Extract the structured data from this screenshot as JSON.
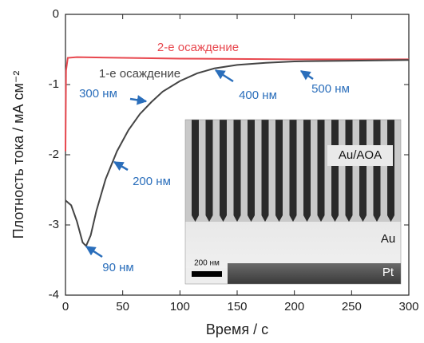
{
  "chart_data": {
    "type": "line",
    "xlabel": "Время / с",
    "ylabel": "Плотность тока / мА см⁻²",
    "xlim": [
      0,
      300
    ],
    "xticks": [
      0,
      50,
      100,
      150,
      200,
      250,
      300
    ],
    "ylim": [
      -4,
      0
    ],
    "yticks": [
      -4,
      -3,
      -2,
      -1,
      0
    ],
    "series": [
      {
        "name": "2-е осаждение",
        "color": "#e8484f",
        "x": [
          0,
          0.5,
          2,
          10,
          50,
          100,
          200,
          300
        ],
        "values": [
          -1.95,
          -0.8,
          -0.62,
          -0.61,
          -0.62,
          -0.63,
          -0.64,
          -0.64
        ]
      },
      {
        "name": "1-е осаждение",
        "color": "#444444",
        "x": [
          0,
          5,
          10,
          15,
          18,
          22,
          27,
          35,
          45,
          55,
          65,
          75,
          85,
          100,
          115,
          130,
          150,
          175,
          200,
          250,
          300
        ],
        "values": [
          -2.65,
          -2.72,
          -2.95,
          -3.25,
          -3.3,
          -3.15,
          -2.8,
          -2.35,
          -1.95,
          -1.65,
          -1.42,
          -1.25,
          -1.1,
          -0.95,
          -0.84,
          -0.77,
          -0.72,
          -0.69,
          -0.67,
          -0.66,
          -0.65
        ]
      }
    ],
    "annotations": [
      "90 нм",
      "200 нм",
      "300 нм",
      "400 нм",
      "500 нм"
    ],
    "inset": {
      "labels": [
        "Au/AOA",
        "Au",
        "Pt"
      ],
      "scale_bar": "200 нм"
    }
  }
}
